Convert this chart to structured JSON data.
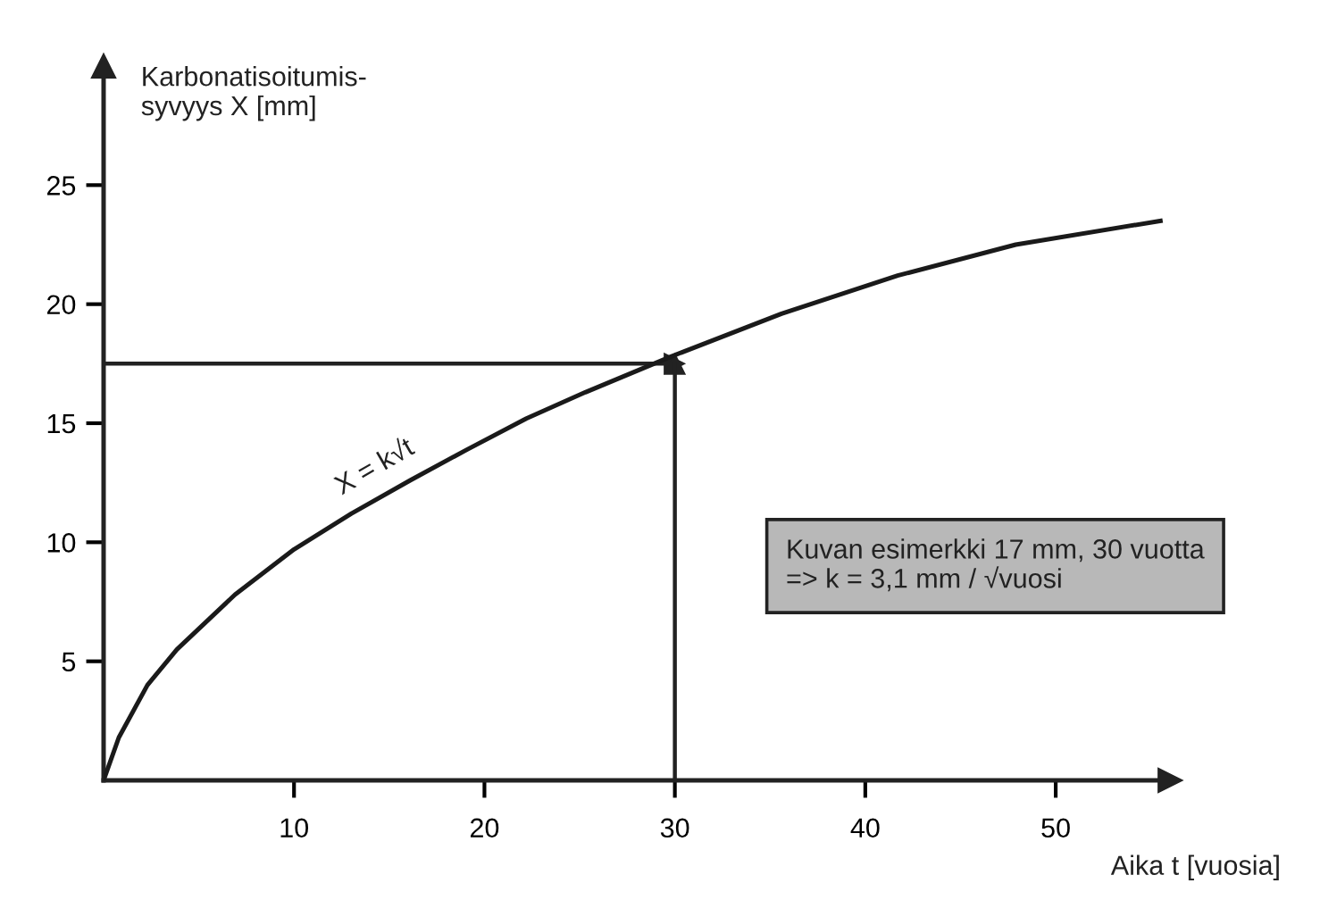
{
  "chart_data": {
    "type": "line",
    "ylabel": "Karbonatisoitumis-\nsyvyys X [mm]",
    "xlabel": "Aika t [vuosia]",
    "x": [
      0,
      0.8,
      2.3,
      3.85,
      6.9,
      10,
      13,
      16.1,
      19.1,
      22.2,
      25.3,
      29.8,
      35.6,
      41.7,
      47.9,
      55.5
    ],
    "series": [
      {
        "color": "#1a1a1a",
        "values": [
          0,
          1.8,
          4.0,
          5.5,
          7.8,
          9.7,
          11.2,
          12.6,
          13.9,
          15.2,
          16.3,
          17.8,
          19.6,
          21.2,
          22.5,
          23.5
        ]
      }
    ],
    "xlim": [
      0,
      56
    ],
    "ylim": [
      0,
      30
    ],
    "xticks": [
      10,
      20,
      30,
      40,
      50
    ],
    "yticks": [
      5,
      10,
      15,
      20,
      25
    ],
    "ref_lines": [
      {
        "axis": "y",
        "value": 17.5
      },
      {
        "axis": "x",
        "value": 30
      }
    ],
    "annotations": [
      "X = k√t",
      "Kuvan esimerkki 17 mm, 30 vuotta\n=> k = 3,1 mm / √vuosi"
    ],
    "marker": "none",
    "line_style": "solid",
    "grid": false,
    "legend": false
  }
}
